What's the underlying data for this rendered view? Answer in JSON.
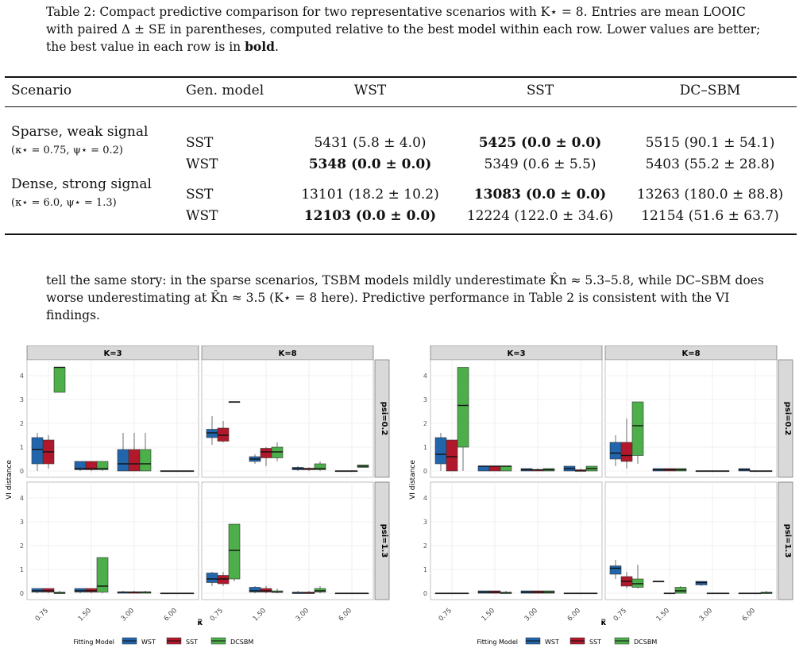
{
  "caption": {
    "prefix": "Table 2: Compact predictive comparison for two representative scenarios with K⋆ = 8. Entries are mean LOOIC with paired Δ ± SE in parentheses, computed relative to the best model within each row. Lower values are better; the best value in each row is in ",
    "bold_word": "bold",
    "suffix": "."
  },
  "table": {
    "headers": [
      "Scenario",
      "Gen. model",
      "WST",
      "SST",
      "DC–SBM"
    ],
    "groups": [
      {
        "scenario": "Sparse, weak signal",
        "params": "(κ⋆ = 0.75,  ψ⋆ = 0.2)",
        "rows": [
          {
            "gen": "SST",
            "cells": [
              "5431 (5.8 ± 4.0)",
              "5425 (0.0 ± 0.0)",
              "5515 (90.1 ± 54.1)"
            ],
            "best": 1
          },
          {
            "gen": "WST",
            "cells": [
              "5348 (0.0 ± 0.0)",
              "5349 (0.6 ± 5.5)",
              "5403 (55.2 ± 28.8)"
            ],
            "best": 0
          }
        ]
      },
      {
        "scenario": "Dense, strong signal",
        "params": "(κ⋆ = 6.0,  ψ⋆ = 1.3)",
        "rows": [
          {
            "gen": "SST",
            "cells": [
              "13101 (18.2 ± 10.2)",
              "13083 (0.0 ± 0.0)",
              "13263 (180.0 ± 88.8)"
            ],
            "best": 1
          },
          {
            "gen": "WST",
            "cells": [
              "12103 (0.0 ± 0.0)",
              "12224 (122.0 ± 34.6)",
              "12154 (51.6 ± 63.7)"
            ],
            "best": 0
          }
        ]
      }
    ]
  },
  "body_text": "tell the same story: in the sparse scenarios, TSBM models mildly underestimate K̂n ≈ 5.3–5.8, while DC–SBM does worse underestimating at K̂n ≈ 3.5 (K⋆ = 8 here). Predictive performance in Table 2 is consistent with the VI findings.",
  "colors": {
    "WST": "#2166ac",
    "SST": "#b2182b",
    "DCSBM": "#4daf4a",
    "strip": "#d9d9d9"
  },
  "chart_data": [
    {
      "type": "boxplot",
      "ylabel": "VI distance",
      "xlabel": "κ̅",
      "x_ticks": [
        "0.75",
        "1.50",
        "3.00",
        "6.00"
      ],
      "ylim": [
        0,
        4.4
      ],
      "y_ticks": [
        0,
        1,
        2,
        3,
        4
      ],
      "col_strips": [
        "K=3",
        "K=8"
      ],
      "row_strips": [
        "psi=0.2",
        "psi=1.3"
      ],
      "legend_title": "Fitting Model",
      "legend": [
        "WST",
        "SST",
        "DCSBM"
      ],
      "panels": [
        {
          "K": "K=3",
          "psi": "psi=0.2",
          "boxes": [
            [
              [
                0,
                0.3,
                0.9,
                1.4,
                1.6
              ],
              [
                0.1,
                0.3,
                0.8,
                1.3,
                1.5
              ],
              [
                4.35,
                3.3,
                4.35,
                4.35,
                4.35
              ]
            ],
            [
              [
                0,
                0.05,
                0.1,
                0.4,
                0.4
              ],
              [
                0,
                0.05,
                0.1,
                0.4,
                0.4
              ],
              [
                0,
                0.05,
                0.1,
                0.4,
                0.4
              ]
            ],
            [
              [
                0,
                0,
                0.3,
                0.9,
                1.6
              ],
              [
                0,
                0,
                0.3,
                0.9,
                1.6
              ],
              [
                0,
                0,
                0.3,
                0.9,
                1.6
              ]
            ],
            [
              [
                0,
                0,
                0,
                0,
                0
              ],
              [
                0,
                0,
                0,
                0,
                0
              ],
              [
                0,
                0,
                0,
                0,
                0
              ]
            ]
          ]
        },
        {
          "K": "K=8",
          "psi": "psi=0.2",
          "boxes": [
            [
              [
                1.1,
                1.4,
                1.6,
                1.75,
                2.3
              ],
              [
                1.2,
                1.25,
                1.5,
                1.8,
                2.1
              ],
              [
                2.9,
                2.9,
                2.9,
                2.9,
                2.9
              ]
            ],
            [
              [
                0.3,
                0.4,
                0.5,
                0.6,
                0.7
              ],
              [
                0.2,
                0.55,
                0.8,
                0.95,
                1.0
              ],
              [
                0.4,
                0.55,
                0.8,
                1.0,
                1.2
              ]
            ],
            [
              [
                0,
                0.05,
                0.1,
                0.15,
                0.2
              ],
              [
                0,
                0.05,
                0.1,
                0.1,
                0.15
              ],
              [
                0,
                0.05,
                0.1,
                0.3,
                0.4
              ]
            ],
            [
              [
                0,
                0,
                0,
                0,
                0
              ],
              [
                0,
                0,
                0,
                0,
                0
              ],
              [
                0.15,
                0.15,
                0.2,
                0.25,
                0.25
              ]
            ]
          ]
        },
        {
          "K": "K=3",
          "psi": "psi=1.3",
          "boxes": [
            [
              [
                0,
                0.05,
                0.1,
                0.2,
                0.2
              ],
              [
                0,
                0.05,
                0.1,
                0.2,
                0.2
              ],
              [
                0,
                0,
                0,
                0.05,
                0.1
              ]
            ],
            [
              [
                0,
                0.05,
                0.1,
                0.2,
                0.2
              ],
              [
                0,
                0.05,
                0.1,
                0.2,
                0.2
              ],
              [
                0,
                0.05,
                0.3,
                1.5,
                1.5
              ]
            ],
            [
              [
                0,
                0,
                0.05,
                0.05,
                0.1
              ],
              [
                0,
                0,
                0.05,
                0.05,
                0.1
              ],
              [
                0,
                0,
                0.05,
                0.05,
                0.1
              ]
            ],
            [
              [
                0,
                0,
                0,
                0,
                0
              ],
              [
                0,
                0,
                0,
                0,
                0
              ],
              [
                0,
                0,
                0,
                0,
                0
              ]
            ]
          ]
        },
        {
          "K": "K=8",
          "psi": "psi=1.3",
          "boxes": [
            [
              [
                0.3,
                0.45,
                0.6,
                0.85,
                0.9
              ],
              [
                0.3,
                0.4,
                0.6,
                0.75,
                0.9
              ],
              [
                0.5,
                0.6,
                1.8,
                2.9,
                2.9
              ]
            ],
            [
              [
                0,
                0.05,
                0.1,
                0.25,
                0.3
              ],
              [
                0,
                0.05,
                0.1,
                0.2,
                0.3
              ],
              [
                0,
                0.05,
                0.05,
                0.1,
                0.2
              ]
            ],
            [
              [
                0,
                0,
                0,
                0.05,
                0.1
              ],
              [
                0,
                0,
                0,
                0.05,
                0.1
              ],
              [
                0,
                0.05,
                0.1,
                0.2,
                0.3
              ]
            ],
            [
              [
                0,
                0,
                0,
                0,
                0
              ],
              [
                0,
                0,
                0,
                0,
                0
              ],
              [
                0,
                0,
                0,
                0,
                0
              ]
            ]
          ]
        }
      ]
    },
    {
      "type": "boxplot",
      "ylabel": "VI distance",
      "xlabel": "κ̅",
      "x_ticks": [
        "0.75",
        "1.50",
        "3.00",
        "6.00"
      ],
      "ylim": [
        0,
        4.4
      ],
      "y_ticks": [
        0,
        1,
        2,
        3,
        4
      ],
      "col_strips": [
        "K=3",
        "K=8"
      ],
      "row_strips": [
        "psi=0.2",
        "psi=1.3"
      ],
      "legend_title": "Fitting Model",
      "legend": [
        "WST",
        "SST",
        "DCSBM"
      ],
      "panels": [
        {
          "K": "K=3",
          "psi": "psi=0.2",
          "boxes": [
            [
              [
                0,
                0.3,
                0.7,
                1.4,
                1.6
              ],
              [
                0,
                0,
                0.6,
                1.3,
                1.3
              ],
              [
                0,
                1.0,
                2.75,
                4.35,
                4.35
              ]
            ],
            [
              [
                0,
                0,
                0.2,
                0.2,
                0.2
              ],
              [
                0,
                0,
                0.2,
                0.2,
                0.2
              ],
              [
                0,
                0,
                0.2,
                0.2,
                0.2
              ]
            ],
            [
              [
                0,
                0,
                0.05,
                0.1,
                0.1
              ],
              [
                0,
                0,
                0.05,
                0.05,
                0.1
              ],
              [
                0,
                0,
                0.05,
                0.1,
                0.1
              ]
            ],
            [
              [
                0,
                0,
                0.1,
                0.2,
                0.2
              ],
              [
                0,
                0,
                0,
                0.05,
                0.1
              ],
              [
                0,
                0,
                0.1,
                0.2,
                0.2
              ]
            ]
          ]
        },
        {
          "K": "K=8",
          "psi": "psi=0.2",
          "boxes": [
            [
              [
                0.2,
                0.5,
                0.75,
                1.2,
                1.5
              ],
              [
                0.1,
                0.4,
                0.65,
                1.2,
                2.2
              ],
              [
                0.3,
                0.65,
                1.9,
                2.9,
                2.9
              ]
            ],
            [
              [
                0,
                0,
                0.05,
                0.1,
                0.1
              ],
              [
                0,
                0,
                0.05,
                0.1,
                0.1
              ],
              [
                0,
                0,
                0.05,
                0.1,
                0.1
              ]
            ],
            [
              [
                0,
                0,
                0,
                0,
                0
              ],
              [
                0,
                0,
                0,
                0,
                0
              ],
              [
                0,
                0,
                0,
                0,
                0
              ]
            ],
            [
              [
                0,
                0,
                0.05,
                0.1,
                0.1
              ],
              [
                0,
                0,
                0,
                0,
                0
              ],
              [
                0,
                0,
                0,
                0,
                0
              ]
            ]
          ]
        },
        {
          "K": "K=3",
          "psi": "psi=1.3",
          "boxes": [
            [
              [
                0,
                0,
                0,
                0,
                0
              ],
              [
                0,
                0,
                0,
                0,
                0
              ],
              [
                0,
                0,
                0,
                0,
                0
              ]
            ],
            [
              [
                0,
                0,
                0.05,
                0.1,
                0.1
              ],
              [
                0,
                0,
                0.05,
                0.1,
                0.1
              ],
              [
                0,
                0,
                0,
                0.05,
                0.1
              ]
            ],
            [
              [
                0,
                0,
                0.05,
                0.1,
                0.1
              ],
              [
                0,
                0,
                0.05,
                0.1,
                0.1
              ],
              [
                0,
                0,
                0.05,
                0.1,
                0.1
              ]
            ],
            [
              [
                0,
                0,
                0,
                0,
                0
              ],
              [
                0,
                0,
                0,
                0,
                0
              ],
              [
                0,
                0,
                0,
                0,
                0
              ]
            ]
          ]
        },
        {
          "K": "K=8",
          "psi": "psi=1.3",
          "boxes": [
            [
              [
                0.6,
                0.8,
                1.05,
                1.15,
                1.4
              ],
              [
                0.2,
                0.3,
                0.5,
                0.7,
                0.9
              ],
              [
                0.2,
                0.25,
                0.4,
                0.6,
                1.2
              ]
            ],
            [
              [
                0.5,
                0.5,
                0.5,
                0.5,
                0.5
              ],
              [
                0,
                0,
                0,
                0,
                0
              ],
              [
                0,
                0,
                0.1,
                0.25,
                0.3
              ]
            ],
            [
              [
                0.3,
                0.35,
                0.45,
                0.5,
                0.5
              ],
              [
                0,
                0,
                0,
                0,
                0
              ],
              [
                0,
                0,
                0,
                0,
                0
              ]
            ],
            [
              [
                0,
                0,
                0,
                0,
                0
              ],
              [
                0,
                0,
                0,
                0,
                0
              ],
              [
                0,
                0,
                0,
                0.05,
                0.1
              ]
            ]
          ]
        }
      ]
    }
  ]
}
